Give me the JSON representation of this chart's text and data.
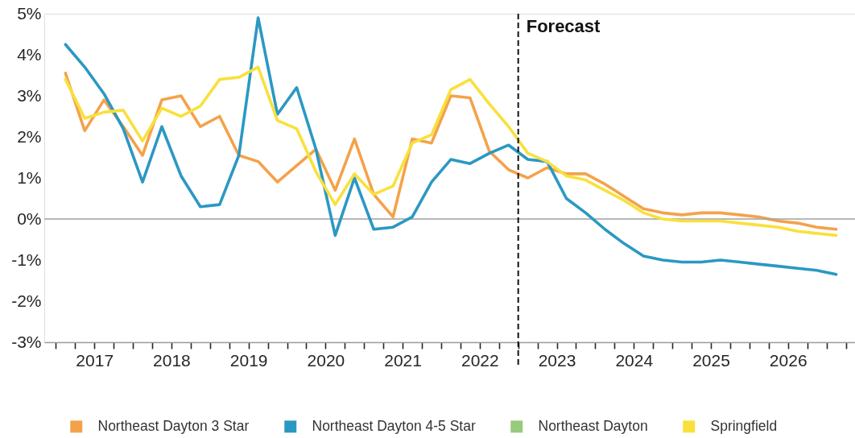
{
  "chart_data": {
    "type": "line",
    "x": [
      2017.125,
      2017.375,
      2017.625,
      2017.875,
      2018.125,
      2018.375,
      2018.625,
      2018.875,
      2019.125,
      2019.375,
      2019.625,
      2019.875,
      2020.125,
      2020.375,
      2020.625,
      2020.875,
      2021.125,
      2021.375,
      2021.625,
      2021.875,
      2022.125,
      2022.375,
      2022.625,
      2022.875,
      2023.125,
      2023.375,
      2023.625,
      2023.875,
      2024.125,
      2024.375,
      2024.625,
      2024.875,
      2025.125,
      2025.375,
      2025.625,
      2025.875,
      2026.125,
      2026.375,
      2026.625,
      2026.875,
      2027.125
    ],
    "xlim": [
      2016.85,
      2027.37
    ],
    "xticks": [
      {
        "value": 2017,
        "label": null
      },
      {
        "value": 2017.25,
        "label": null
      },
      {
        "value": 2017.5,
        "label": "2017"
      },
      {
        "value": 2017.75,
        "label": null
      },
      {
        "value": 2018,
        "label": null
      },
      {
        "value": 2018.25,
        "label": null
      },
      {
        "value": 2018.5,
        "label": "2018"
      },
      {
        "value": 2018.75,
        "label": null
      },
      {
        "value": 2019,
        "label": null
      },
      {
        "value": 2019.25,
        "label": null
      },
      {
        "value": 2019.5,
        "label": "2019"
      },
      {
        "value": 2019.75,
        "label": null
      },
      {
        "value": 2020,
        "label": null
      },
      {
        "value": 2020.25,
        "label": null
      },
      {
        "value": 2020.5,
        "label": "2020"
      },
      {
        "value": 2020.75,
        "label": null
      },
      {
        "value": 2021,
        "label": null
      },
      {
        "value": 2021.25,
        "label": null
      },
      {
        "value": 2021.5,
        "label": "2021"
      },
      {
        "value": 2021.75,
        "label": null
      },
      {
        "value": 2022,
        "label": null
      },
      {
        "value": 2022.25,
        "label": null
      },
      {
        "value": 2022.5,
        "label": "2022"
      },
      {
        "value": 2022.75,
        "label": null
      },
      {
        "value": 2023,
        "label": null
      },
      {
        "value": 2023.25,
        "label": null
      },
      {
        "value": 2023.5,
        "label": "2023"
      },
      {
        "value": 2023.75,
        "label": null
      },
      {
        "value": 2024,
        "label": null
      },
      {
        "value": 2024.25,
        "label": null
      },
      {
        "value": 2024.5,
        "label": "2024"
      },
      {
        "value": 2024.75,
        "label": null
      },
      {
        "value": 2025,
        "label": null
      },
      {
        "value": 2025.25,
        "label": null
      },
      {
        "value": 2025.5,
        "label": "2025"
      },
      {
        "value": 2025.75,
        "label": null
      },
      {
        "value": 2026,
        "label": null
      },
      {
        "value": 2026.25,
        "label": null
      },
      {
        "value": 2026.5,
        "label": "2026"
      },
      {
        "value": 2026.75,
        "label": null
      },
      {
        "value": 2027,
        "label": null
      },
      {
        "value": 2027.25,
        "label": null
      }
    ],
    "ylim": [
      -3,
      5
    ],
    "yticks": [
      {
        "value": -3,
        "label": "-3%"
      },
      {
        "value": -2,
        "label": "-2%"
      },
      {
        "value": -1,
        "label": "-1%"
      },
      {
        "value": 0,
        "label": "0%"
      },
      {
        "value": 1,
        "label": "1%"
      },
      {
        "value": 2,
        "label": "2%"
      },
      {
        "value": 3,
        "label": "3%"
      },
      {
        "value": 4,
        "label": "4%"
      },
      {
        "value": 5,
        "label": "5%"
      }
    ],
    "series": [
      {
        "name": "Northeast Dayton 3 Star",
        "color": "#f4a24a",
        "values": [
          3.55,
          2.15,
          2.9,
          2.25,
          1.55,
          2.9,
          3.0,
          2.25,
          2.5,
          1.55,
          1.4,
          0.9,
          1.3,
          1.7,
          0.7,
          1.95,
          0.6,
          0.05,
          1.95,
          1.85,
          3.0,
          2.95,
          1.65,
          1.2,
          1.0,
          1.25,
          1.1,
          1.1,
          0.85,
          0.55,
          0.25,
          0.15,
          0.1,
          0.15,
          0.15,
          0.1,
          0.05,
          -0.05,
          -0.1,
          -0.2,
          -0.25
        ]
      },
      {
        "name": "Northeast Dayton 4-5 Star",
        "color": "#2b98c3",
        "values": [
          4.25,
          3.7,
          3.05,
          2.2,
          0.9,
          2.25,
          1.05,
          0.3,
          0.35,
          1.55,
          4.9,
          2.55,
          3.2,
          1.7,
          -0.4,
          1.0,
          -0.25,
          -0.2,
          0.05,
          0.9,
          1.45,
          1.35,
          1.6,
          1.8,
          1.45,
          1.4,
          0.5,
          0.15,
          -0.25,
          -0.6,
          -0.9,
          -1.0,
          -1.05,
          -1.05,
          -1.0,
          -1.05,
          -1.1,
          -1.15,
          -1.2,
          -1.25,
          -1.35
        ]
      },
      {
        "name": "Northeast Dayton",
        "color": "#98c97c",
        "values": [
          null,
          null,
          null,
          null,
          null,
          null,
          null,
          null,
          null,
          null,
          null,
          null,
          null,
          null,
          null,
          null,
          null,
          null,
          null,
          null,
          null,
          null,
          null,
          null,
          null,
          null,
          null,
          null,
          null,
          null,
          null,
          null,
          null,
          null,
          null,
          null,
          null,
          null,
          null,
          null,
          null
        ]
      },
      {
        "name": "Springfield",
        "color": "#f9e03c",
        "values": [
          3.4,
          2.45,
          2.6,
          2.65,
          1.9,
          2.7,
          2.5,
          2.75,
          3.4,
          3.45,
          3.7,
          2.4,
          2.2,
          1.15,
          0.35,
          1.1,
          0.6,
          0.8,
          1.85,
          2.05,
          3.15,
          3.4,
          2.8,
          2.25,
          1.6,
          1.4,
          1.05,
          0.95,
          0.7,
          0.45,
          0.15,
          0.0,
          -0.05,
          -0.05,
          -0.05,
          -0.1,
          -0.15,
          -0.2,
          -0.3,
          -0.35,
          -0.4
        ]
      }
    ],
    "ref_lines": [
      {
        "axis": "y",
        "value": 0,
        "color": "#a0a0a0"
      },
      {
        "axis": "x",
        "value": 2023,
        "label": "Forecast",
        "color": "#111111",
        "line_style": "dashed"
      }
    ],
    "legend": "bottom"
  }
}
